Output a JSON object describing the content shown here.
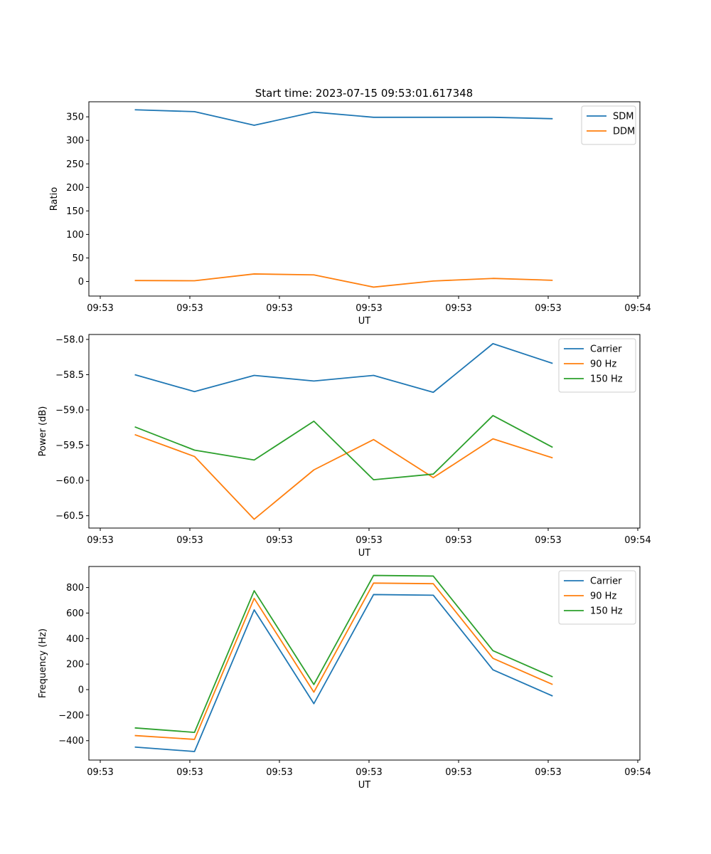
{
  "chart_data": [
    {
      "type": "line",
      "title": "Start time: 2023-07-15 09:53:01.617348",
      "xlabel": "UT",
      "ylabel": "Ratio",
      "xticks": [
        "09:53",
        "09:53",
        "09:53",
        "09:53",
        "09:53",
        "09:53",
        "09:54"
      ],
      "xlim": [
        0,
        6
      ],
      "x": [
        0.5,
        1.15,
        1.8,
        2.45,
        3.1,
        3.75,
        4.4,
        5.05
      ],
      "ylim": [
        -31,
        382
      ],
      "yticks": [
        0,
        50,
        100,
        150,
        200,
        250,
        300,
        350
      ],
      "legend": "top-right",
      "series": [
        {
          "name": "SDM",
          "color": "#1f77b4",
          "values": [
            365,
            361,
            332,
            360,
            349,
            349,
            349,
            346
          ]
        },
        {
          "name": "DDM",
          "color": "#ff7f0e",
          "values": [
            2,
            1.5,
            16,
            14,
            -12,
            1,
            6.5,
            2.5
          ]
        }
      ]
    },
    {
      "type": "line",
      "title": "",
      "xlabel": "UT",
      "ylabel": "Power (dB)",
      "xticks": [
        "09:53",
        "09:53",
        "09:53",
        "09:53",
        "09:53",
        "09:53",
        "09:54"
      ],
      "xlim": [
        0,
        6
      ],
      "x": [
        0.5,
        1.15,
        1.8,
        2.45,
        3.1,
        3.75,
        4.4,
        5.05
      ],
      "ylim": [
        -60.675,
        -57.93
      ],
      "yticks": [
        -60.5,
        -60.0,
        -59.5,
        -59.0,
        -58.5,
        -58.0
      ],
      "ytick_labels": [
        "−60.5",
        "−60.0",
        "−59.5",
        "−59.0",
        "−58.5",
        "−58.0"
      ],
      "legend": "top-right",
      "series": [
        {
          "name": "Carrier",
          "color": "#1f77b4",
          "values": [
            -58.5,
            -58.74,
            -58.51,
            -58.59,
            -58.51,
            -58.75,
            -58.06,
            -58.34
          ]
        },
        {
          "name": "90 Hz",
          "color": "#ff7f0e",
          "values": [
            -59.35,
            -59.66,
            -60.55,
            -59.85,
            -59.42,
            -59.96,
            -59.41,
            -59.68
          ]
        },
        {
          "name": "150 Hz",
          "color": "#2ca02c",
          "values": [
            -59.24,
            -59.57,
            -59.71,
            -59.16,
            -59.99,
            -59.91,
            -59.08,
            -59.53
          ]
        }
      ]
    },
    {
      "type": "line",
      "title": "",
      "xlabel": "UT",
      "ylabel": "Frequency (Hz)",
      "xticks": [
        "09:53",
        "09:53",
        "09:53",
        "09:53",
        "09:53",
        "09:53",
        "09:54"
      ],
      "xlim": [
        0,
        6
      ],
      "x": [
        0.5,
        1.15,
        1.8,
        2.45,
        3.1,
        3.75,
        4.4,
        5.05
      ],
      "ylim": [
        -552,
        965
      ],
      "yticks": [
        -400,
        -200,
        0,
        200,
        400,
        600,
        800
      ],
      "ytick_labels": [
        "−400",
        "−200",
        "0",
        "200",
        "400",
        "600",
        "800"
      ],
      "legend": "top-right",
      "series": [
        {
          "name": "Carrier",
          "color": "#1f77b4",
          "values": [
            -450,
            -485,
            625,
            -110,
            745,
            740,
            155,
            -50
          ]
        },
        {
          "name": "90 Hz",
          "color": "#ff7f0e",
          "values": [
            -360,
            -390,
            715,
            -20,
            835,
            830,
            245,
            40
          ]
        },
        {
          "name": "150 Hz",
          "color": "#2ca02c",
          "values": [
            -300,
            -335,
            775,
            40,
            895,
            890,
            305,
            100
          ]
        }
      ]
    }
  ]
}
